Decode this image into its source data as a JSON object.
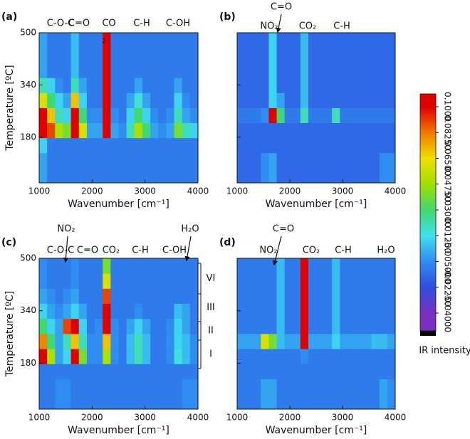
{
  "chart_data": [
    {
      "type": "heatmap",
      "panel_label": "(a)",
      "x_label": "Wavenumber [cm⁻¹]",
      "y_label": "Temperature [ºC]",
      "show_ytick_labels": true,
      "annotations": [
        "C-O-C",
        "C=O",
        "CO",
        "2",
        "C-H",
        "C-OH"
      ],
      "xlim": [
        1000,
        4000
      ],
      "ylim": [
        40,
        500
      ],
      "xticks": [
        1000,
        2000,
        3000,
        4000
      ],
      "yticks": [
        180,
        340,
        500
      ],
      "z": [
        [
          0,
          -0.01,
          -0.01,
          -0.01,
          -0.01,
          -0.01,
          -0.01,
          -0.01,
          -0.01,
          -0.01,
          -0.01,
          -0.01,
          -0.01,
          -0.01,
          -0.01,
          -0.01,
          -0.01,
          -0.01,
          -0.01,
          -0.01
        ],
        [
          0,
          -0.01,
          -0.01,
          -0.01,
          -0.01,
          -0.01,
          -0.01,
          -0.01,
          -0.01,
          -0.01,
          -0.01,
          -0.01,
          -0.01,
          -0.01,
          -0.01,
          -0.01,
          -0.01,
          -0.01,
          -0.01,
          -0.01
        ],
        [
          0.01,
          -0.01,
          -0.01,
          -0.01,
          -0.01,
          -0.01,
          -0.01,
          -0.01,
          -0.01,
          -0.01,
          -0.01,
          -0.01,
          -0.01,
          -0.01,
          -0.01,
          -0.01,
          -0.01,
          -0.01,
          -0.01,
          -0.01
        ],
        [
          0.1,
          0.09,
          0.05,
          0.04,
          0.1,
          0.06,
          0,
          0,
          0.1,
          0,
          -0.005,
          0.02,
          0.05,
          0.03,
          0,
          -0.005,
          0,
          0.04,
          0.02,
          0.01
        ],
        [
          0.1,
          0.07,
          0.02,
          0.01,
          0.1,
          0.03,
          -0.005,
          -0.005,
          0.1,
          -0.005,
          -0.01,
          0.01,
          0.03,
          0.01,
          -0.005,
          -0.01,
          -0.005,
          0.02,
          0,
          -0.005
        ],
        [
          0.06,
          0.03,
          0.01,
          0,
          0.07,
          0.01,
          -0.01,
          -0.01,
          0.1,
          -0.01,
          -0.01,
          0,
          0.015,
          0,
          -0.01,
          -0.01,
          -0.01,
          0.01,
          -0.005,
          -0.01
        ],
        [
          0.02,
          0.01,
          -0.005,
          -0.01,
          0.02,
          0,
          -0.01,
          -0.01,
          0.1,
          -0.01,
          -0.01,
          -0.01,
          0,
          -0.01,
          -0.01,
          -0.01,
          -0.01,
          0,
          -0.01,
          -0.01
        ],
        [
          0,
          -0.01,
          -0.01,
          -0.01,
          0.005,
          -0.01,
          -0.01,
          -0.01,
          0.1,
          -0.01,
          -0.01,
          -0.01,
          -0.01,
          -0.01,
          -0.01,
          -0.01,
          -0.01,
          -0.01,
          -0.01,
          -0.01
        ],
        [
          0,
          -0.01,
          -0.01,
          -0.01,
          0.005,
          -0.01,
          -0.01,
          -0.01,
          0.1,
          -0.01,
          -0.01,
          -0.01,
          -0.01,
          -0.01,
          -0.01,
          -0.01,
          -0.01,
          -0.01,
          -0.01,
          -0.01
        ],
        [
          0,
          -0.01,
          -0.01,
          -0.01,
          0.005,
          -0.01,
          -0.01,
          -0.01,
          0.1,
          -0.01,
          -0.01,
          -0.01,
          -0.01,
          -0.01,
          -0.01,
          -0.01,
          -0.01,
          -0.01,
          -0.01,
          -0.01
        ]
      ]
    },
    {
      "type": "heatmap",
      "panel_label": "(b)",
      "x_label": "Wavenumber [cm⁻¹]",
      "show_ytick_labels": false,
      "annotations": [
        "NO₂",
        "C=O",
        "CO₂",
        "C-H"
      ],
      "xlim": [
        1000,
        4000
      ],
      "ylim": [
        40,
        500
      ],
      "xticks": [
        1000,
        2000,
        3000,
        4000
      ],
      "yticks": [
        180,
        340,
        500
      ],
      "z": [
        [
          -0.015,
          -0.015,
          -0.015,
          -0.005,
          0,
          -0.015,
          -0.015,
          -0.015,
          -0.015,
          -0.015,
          -0.015,
          -0.015,
          -0.015,
          -0.015,
          -0.015,
          -0.015,
          -0.015,
          -0.015,
          -0.005,
          -0.005
        ],
        [
          -0.015,
          -0.015,
          -0.015,
          -0.005,
          0,
          -0.015,
          -0.015,
          -0.015,
          -0.015,
          -0.015,
          -0.015,
          -0.015,
          -0.015,
          -0.015,
          -0.015,
          -0.015,
          -0.015,
          -0.015,
          -0.005,
          -0.005
        ],
        [
          -0.015,
          -0.015,
          -0.015,
          -0.015,
          -0.015,
          -0.015,
          -0.015,
          -0.015,
          -0.015,
          -0.015,
          -0.015,
          -0.015,
          -0.015,
          -0.015,
          -0.015,
          -0.015,
          -0.015,
          -0.015,
          -0.015,
          -0.015
        ],
        [
          -0.015,
          -0.015,
          -0.015,
          -0.015,
          -0.015,
          -0.015,
          -0.015,
          -0.015,
          -0.015,
          -0.015,
          -0.015,
          -0.015,
          -0.015,
          -0.015,
          -0.015,
          -0.015,
          -0.015,
          -0.015,
          -0.015,
          -0.015
        ],
        [
          -0.01,
          -0.01,
          -0.01,
          -0.005,
          0.1,
          0.03,
          -0.01,
          -0.01,
          0.02,
          -0.01,
          -0.01,
          -0.01,
          0.02,
          -0.01,
          -0.01,
          -0.01,
          -0.01,
          -0.01,
          -0.01,
          -0.01
        ],
        [
          -0.015,
          -0.015,
          -0.015,
          -0.015,
          0.01,
          0,
          -0.015,
          -0.015,
          0.005,
          -0.015,
          -0.015,
          -0.015,
          -0.015,
          -0.015,
          -0.015,
          -0.015,
          -0.015,
          -0.015,
          -0.015,
          -0.015
        ],
        [
          -0.015,
          -0.015,
          -0.015,
          -0.015,
          0.01,
          -0.015,
          -0.015,
          -0.015,
          0.005,
          -0.015,
          -0.015,
          -0.015,
          -0.015,
          -0.015,
          -0.015,
          -0.015,
          -0.015,
          -0.015,
          -0.015,
          -0.015
        ],
        [
          -0.015,
          -0.015,
          -0.015,
          -0.015,
          0.01,
          -0.015,
          -0.015,
          -0.015,
          0.005,
          -0.015,
          -0.015,
          -0.015,
          -0.015,
          -0.015,
          -0.015,
          -0.015,
          -0.015,
          -0.015,
          -0.015,
          -0.015
        ],
        [
          -0.015,
          -0.015,
          -0.015,
          -0.015,
          0.01,
          -0.015,
          -0.015,
          -0.015,
          0.005,
          -0.015,
          -0.015,
          -0.015,
          -0.015,
          -0.015,
          -0.015,
          -0.015,
          -0.015,
          -0.015,
          -0.015,
          -0.015
        ],
        [
          -0.015,
          -0.015,
          -0.015,
          -0.015,
          0.01,
          -0.015,
          -0.015,
          -0.015,
          0.005,
          -0.015,
          -0.015,
          -0.015,
          -0.015,
          -0.015,
          -0.015,
          -0.015,
          -0.015,
          -0.015,
          -0.015,
          -0.015
        ]
      ]
    },
    {
      "type": "heatmap",
      "panel_label": "(c)",
      "x_label": "Wavenumber [cm⁻¹]",
      "y_label": "Temperature [ºC]",
      "show_ytick_labels": true,
      "annotations": [
        "NO₂",
        "C-O-C",
        "C=O",
        "CO₂",
        "C-H",
        "C-OH",
        "H₂O"
      ],
      "regions": [
        "VI",
        "III",
        "II",
        "I"
      ],
      "xlim": [
        1000,
        4000
      ],
      "ylim": [
        40,
        500
      ],
      "xticks": [
        1000,
        2000,
        3000,
        4000
      ],
      "yticks": [
        180,
        340,
        500
      ],
      "z": [
        [
          -0.01,
          -0.01,
          -0.005,
          -0.005,
          -0.01,
          -0.01,
          -0.01,
          -0.01,
          -0.01,
          -0.01,
          -0.01,
          -0.01,
          -0.01,
          -0.01,
          -0.01,
          -0.01,
          -0.01,
          -0.01,
          -0.005,
          -0.005
        ],
        [
          -0.01,
          -0.01,
          -0.005,
          -0.005,
          -0.01,
          -0.01,
          -0.01,
          -0.01,
          -0.01,
          -0.01,
          -0.01,
          -0.01,
          -0.01,
          -0.01,
          -0.01,
          -0.01,
          -0.01,
          -0.01,
          -0.005,
          -0.005
        ],
        [
          -0.01,
          -0.01,
          -0.01,
          -0.01,
          -0.01,
          -0.01,
          -0.01,
          -0.01,
          -0.01,
          -0.01,
          -0.01,
          -0.01,
          -0.01,
          -0.01,
          -0.01,
          -0.01,
          -0.01,
          -0.01,
          -0.01,
          -0.01
        ],
        [
          0.1,
          0.05,
          0,
          0.01,
          0.1,
          0.04,
          -0.005,
          -0.005,
          0.05,
          -0.005,
          -0.01,
          0.005,
          0.02,
          0.005,
          -0.01,
          -0.01,
          -0.005,
          0.015,
          0.005,
          -0.005
        ],
        [
          0.08,
          0.03,
          0,
          0.02,
          0.07,
          0.02,
          -0.005,
          -0.005,
          0.07,
          -0.005,
          -0.01,
          0.005,
          0.02,
          0.005,
          -0.01,
          -0.01,
          -0.005,
          0.01,
          0.005,
          -0.005
        ],
        [
          0.03,
          0.01,
          0,
          0.09,
          0.1,
          0.01,
          -0.01,
          -0.005,
          0.1,
          -0.005,
          -0.01,
          0,
          0.01,
          0,
          -0.01,
          -0.01,
          -0.005,
          0.01,
          0,
          -0.01
        ],
        [
          0.01,
          0,
          -0.005,
          0,
          0.01,
          0,
          -0.01,
          -0.01,
          0.1,
          -0.01,
          -0.01,
          -0.01,
          -0.005,
          -0.01,
          -0.01,
          -0.01,
          -0.01,
          0.005,
          0,
          -0.01
        ],
        [
          0,
          -0.005,
          -0.01,
          -0.005,
          0,
          -0.01,
          -0.01,
          -0.01,
          0.09,
          -0.01,
          -0.01,
          -0.01,
          -0.01,
          -0.01,
          -0.01,
          -0.01,
          -0.01,
          -0.01,
          -0.01,
          -0.01
        ],
        [
          -0.005,
          -0.01,
          -0.01,
          -0.01,
          -0.005,
          -0.01,
          -0.01,
          -0.01,
          0.06,
          -0.01,
          -0.01,
          -0.01,
          -0.01,
          -0.01,
          -0.01,
          -0.01,
          -0.01,
          -0.01,
          -0.01,
          -0.01
        ],
        [
          -0.005,
          -0.01,
          -0.01,
          -0.01,
          -0.005,
          -0.01,
          -0.01,
          -0.01,
          0.04,
          -0.01,
          -0.01,
          -0.01,
          -0.01,
          -0.01,
          -0.01,
          -0.01,
          -0.01,
          -0.01,
          -0.01,
          -0.01
        ]
      ]
    },
    {
      "type": "heatmap",
      "panel_label": "(d)",
      "x_label": "Wavenumber [cm⁻¹]",
      "show_ytick_labels": false,
      "annotations": [
        "C=O",
        "NO₂",
        "CO₂",
        "C-H",
        "H₂O"
      ],
      "xlim": [
        1000,
        4000
      ],
      "ylim": [
        40,
        500
      ],
      "xticks": [
        1000,
        2000,
        3000,
        4000
      ],
      "yticks": [
        180,
        340,
        500
      ],
      "z": [
        [
          -0.01,
          -0.01,
          -0.01,
          0,
          0,
          -0.01,
          -0.01,
          -0.01,
          -0.01,
          -0.01,
          -0.01,
          -0.01,
          -0.01,
          -0.01,
          -0.01,
          -0.01,
          -0.01,
          -0.01,
          0,
          -0.005
        ],
        [
          -0.01,
          -0.01,
          -0.01,
          0,
          0,
          -0.01,
          -0.01,
          -0.01,
          -0.01,
          -0.01,
          -0.01,
          -0.01,
          -0.01,
          -0.01,
          -0.01,
          -0.01,
          -0.01,
          -0.01,
          0,
          -0.005
        ],
        [
          -0.01,
          -0.01,
          -0.01,
          -0.01,
          -0.01,
          -0.01,
          -0.01,
          -0.01,
          -0.01,
          -0.01,
          -0.01,
          -0.01,
          -0.01,
          -0.01,
          -0.01,
          -0.01,
          -0.01,
          -0.01,
          -0.01,
          -0.01
        ],
        [
          -0.01,
          -0.01,
          -0.01,
          -0.01,
          -0.01,
          -0.01,
          -0.01,
          -0.01,
          -0.005,
          -0.01,
          -0.01,
          -0.01,
          -0.01,
          -0.01,
          -0.01,
          -0.01,
          -0.01,
          -0.01,
          -0.01,
          -0.01
        ],
        [
          0,
          0,
          0,
          0.06,
          0.04,
          0.005,
          0,
          0,
          0.1,
          0,
          0,
          0,
          0.01,
          0,
          0,
          0,
          0,
          0.005,
          0.005,
          0
        ],
        [
          -0.01,
          -0.01,
          -0.01,
          -0.01,
          -0.01,
          0.005,
          -0.01,
          -0.01,
          0.1,
          -0.01,
          -0.01,
          -0.01,
          0.005,
          -0.01,
          -0.01,
          -0.01,
          -0.01,
          -0.01,
          -0.01,
          -0.01
        ],
        [
          -0.01,
          -0.01,
          -0.01,
          -0.01,
          -0.01,
          0.005,
          -0.01,
          -0.01,
          0.1,
          -0.01,
          -0.01,
          -0.01,
          0.005,
          -0.01,
          -0.01,
          -0.01,
          -0.01,
          -0.01,
          -0.01,
          -0.01
        ],
        [
          -0.01,
          -0.01,
          -0.01,
          -0.01,
          -0.01,
          0.005,
          -0.01,
          -0.01,
          0.1,
          -0.01,
          -0.01,
          -0.01,
          0.005,
          -0.01,
          -0.01,
          -0.01,
          -0.01,
          -0.01,
          -0.01,
          -0.01
        ],
        [
          -0.01,
          -0.01,
          -0.01,
          -0.01,
          -0.01,
          0.005,
          -0.01,
          -0.01,
          0.1,
          -0.01,
          -0.01,
          -0.01,
          0.005,
          -0.01,
          -0.01,
          -0.01,
          -0.01,
          -0.01,
          -0.01,
          -0.01
        ],
        [
          -0.01,
          -0.01,
          -0.01,
          -0.01,
          -0.01,
          0.005,
          -0.01,
          -0.01,
          0.1,
          -0.01,
          -0.01,
          -0.01,
          0.005,
          -0.01,
          -0.01,
          -0.01,
          -0.01,
          -0.01,
          -0.01,
          -0.01
        ]
      ]
    }
  ],
  "colorbar": {
    "label": "IR intensity",
    "zlim": [
      -0.04,
      0.1
    ],
    "colors": [
      "#7a2fc0",
      "#2f4fe0",
      "#2f8cf0",
      "#40e0f0",
      "#40d870",
      "#a0e000",
      "#f0e000",
      "#f07800",
      "#e00000"
    ],
    "ticks": [
      {
        "value": 0.1,
        "label": "0.1000"
      },
      {
        "value": 0.0825,
        "label": "0.08250"
      },
      {
        "value": 0.065,
        "label": "0.06500"
      },
      {
        "value": 0.0475,
        "label": "0.04750"
      },
      {
        "value": 0.03,
        "label": "0.03000"
      },
      {
        "value": 0.0125,
        "label": "0.01250"
      },
      {
        "value": -0.005,
        "label": "-0.005000"
      },
      {
        "value": -0.0225,
        "label": "-0.02250"
      },
      {
        "value": -0.04,
        "label": "-0.04000"
      }
    ]
  }
}
